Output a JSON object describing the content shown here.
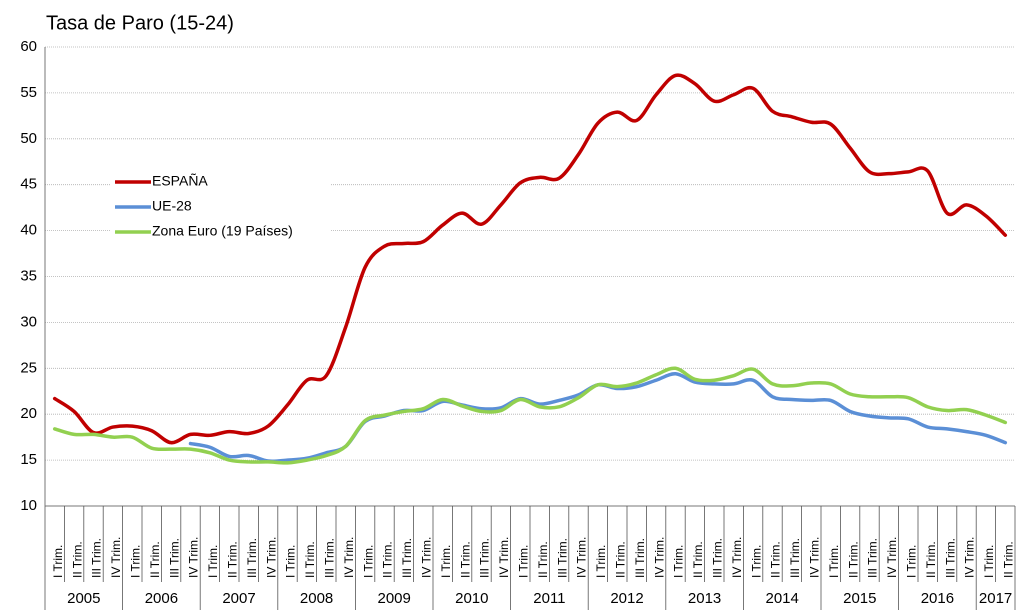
{
  "chart_data": {
    "type": "line",
    "title": "Tasa de Paro (15-24)",
    "categories": [
      "I Trim.",
      "II Trim.",
      "III Trim.",
      "IV Trim.",
      "I Trim.",
      "II Trim.",
      "III Trim.",
      "IV Trim.",
      "I Trim.",
      "II Trim.",
      "III Trim.",
      "IV Trim.",
      "I Trim.",
      "II Trim.",
      "III Trim.",
      "IV Trim.",
      "I Trim.",
      "II Trim.",
      "III Trim.",
      "IV Trim.",
      "I Trim.",
      "II Trim.",
      "III Trim.",
      "IV Trim.",
      "I Trim.",
      "II Trim.",
      "III Trim.",
      "IV Trim.",
      "I Trim.",
      "II Trim.",
      "III Trim.",
      "IV Trim.",
      "I Trim.",
      "II Trim.",
      "III Trim.",
      "IV Trim.",
      "I Trim.",
      "II Trim.",
      "III Trim.",
      "IV Trim.",
      "I Trim.",
      "II Trim.",
      "III Trim.",
      "IV Trim.",
      "I Trim.",
      "II Trim.",
      "III Trim.",
      "IV Trim.",
      "I Trim.",
      "II Trim."
    ],
    "x_groups": [
      "2005",
      "2006",
      "2007",
      "2008",
      "2009",
      "2010",
      "2011",
      "2012",
      "2013",
      "2014",
      "2015",
      "2016",
      "2017"
    ],
    "series": [
      {
        "name": "ESPAÑA",
        "color": "#c00000",
        "values": [
          21.7,
          20.3,
          18.0,
          18.6,
          18.7,
          18.2,
          16.9,
          17.8,
          17.7,
          18.1,
          17.9,
          18.7,
          21.0,
          23.7,
          24.2,
          29.5,
          36.0,
          38.3,
          38.6,
          38.8,
          40.6,
          41.9,
          40.7,
          42.8,
          45.2,
          45.8,
          45.7,
          48.3,
          51.7,
          52.9,
          52.0,
          54.8,
          56.9,
          56.0,
          54.1,
          54.8,
          55.5,
          53.0,
          52.4,
          51.8,
          51.6,
          49.0,
          46.4,
          46.2,
          46.4,
          46.5,
          41.9,
          42.8,
          41.6,
          39.5
        ]
      },
      {
        "name": "UE-28",
        "color": "#5b8fd6",
        "values": [
          null,
          null,
          null,
          null,
          null,
          null,
          null,
          16.8,
          16.4,
          15.4,
          15.5,
          14.9,
          15.0,
          15.2,
          15.8,
          16.5,
          19.2,
          19.8,
          20.4,
          20.4,
          21.4,
          21.0,
          20.6,
          20.7,
          21.7,
          21.1,
          21.5,
          22.1,
          23.2,
          22.8,
          23.0,
          23.7,
          24.4,
          23.5,
          23.3,
          23.3,
          23.7,
          21.9,
          21.6,
          21.5,
          21.5,
          20.3,
          19.8,
          19.6,
          19.5,
          18.6,
          18.4,
          18.1,
          17.7,
          16.9
        ]
      },
      {
        "name": "Zona Euro (19 Países)",
        "color": "#92d050",
        "values": [
          18.4,
          17.8,
          17.8,
          17.5,
          17.5,
          16.3,
          16.2,
          16.2,
          15.8,
          15.0,
          14.8,
          14.8,
          14.7,
          15.0,
          15.5,
          16.5,
          19.3,
          19.9,
          20.3,
          20.6,
          21.6,
          20.9,
          20.3,
          20.4,
          21.6,
          20.8,
          20.8,
          21.8,
          23.2,
          23.0,
          23.4,
          24.3,
          25.0,
          23.8,
          23.7,
          24.2,
          24.9,
          23.3,
          23.1,
          23.4,
          23.3,
          22.2,
          21.9,
          21.9,
          21.8,
          20.8,
          20.4,
          20.5,
          19.9,
          19.1
        ]
      }
    ],
    "ylim": [
      10,
      60
    ],
    "yticks": [
      10,
      15,
      20,
      25,
      30,
      35,
      40,
      45,
      50,
      55,
      60
    ],
    "grid": true
  }
}
